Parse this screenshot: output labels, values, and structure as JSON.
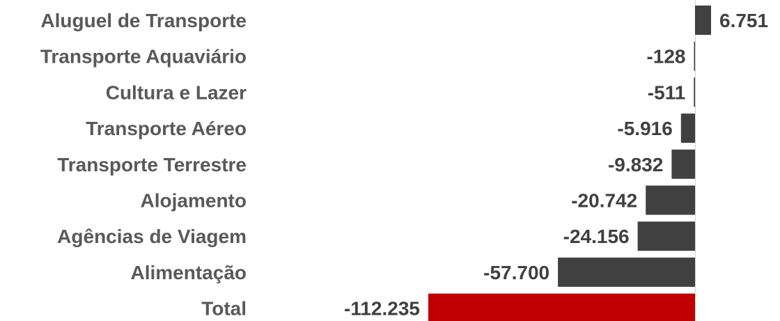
{
  "chart_data": {
    "type": "bar",
    "orientation": "horizontal",
    "categories": [
      "Aluguel de Transporte",
      "Transporte Aquaviário",
      "Cultura e Lazer",
      "Transporte Aéreo",
      "Transporte Terrestre",
      "Alojamento",
      "Agências de Viagem",
      "Alimentação",
      "Total"
    ],
    "values": [
      6751,
      -128,
      -511,
      -5916,
      -9832,
      -20742,
      -24156,
      -57700,
      -112235
    ],
    "value_labels": [
      "6.751",
      "-128",
      "-511",
      "-5.916",
      "-9.832",
      "-20.742",
      "-24.156",
      "-57.700",
      "-112.235"
    ],
    "bar_colors": [
      "#404040",
      "#404040",
      "#404040",
      "#404040",
      "#404040",
      "#404040",
      "#404040",
      "#404040",
      "#c00000"
    ],
    "grid": false,
    "legend": "none"
  }
}
